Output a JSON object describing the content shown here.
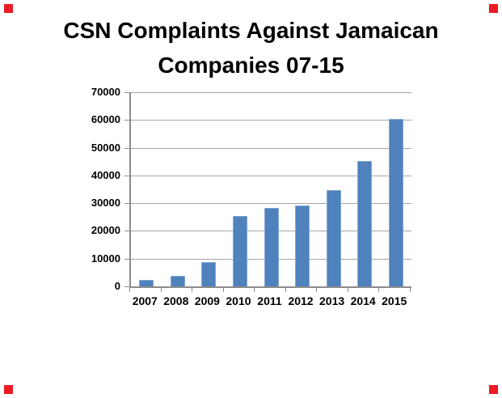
{
  "marker_color": "#ed1c24",
  "chart_data": {
    "type": "bar",
    "title": "CSN Complaints Against Jamaican Companies 07-15",
    "title_lines": [
      "CSN Complaints Against Jamaican",
      "Companies 07-15"
    ],
    "categories": [
      "2007",
      "2008",
      "2009",
      "2010",
      "2011",
      "2012",
      "2013",
      "2014",
      "2015"
    ],
    "values": [
      2000,
      3400,
      8500,
      25000,
      28000,
      29000,
      34500,
      45000,
      60000
    ],
    "xlabel": "",
    "ylabel": "",
    "ylim": [
      0,
      70000
    ],
    "ytick_interval": 10000,
    "ytick_labels": [
      "0",
      "10000",
      "20000",
      "30000",
      "40000",
      "50000",
      "60000",
      "70000"
    ],
    "grid": true,
    "legend": "none",
    "bar_color": "#4f81bd",
    "bar_border_color": "#84a8d4",
    "gridline_color": "#a6a6a6",
    "axis_color": "#8c8c8c",
    "text_color": "#000000",
    "background_color": "#ffffff"
  }
}
